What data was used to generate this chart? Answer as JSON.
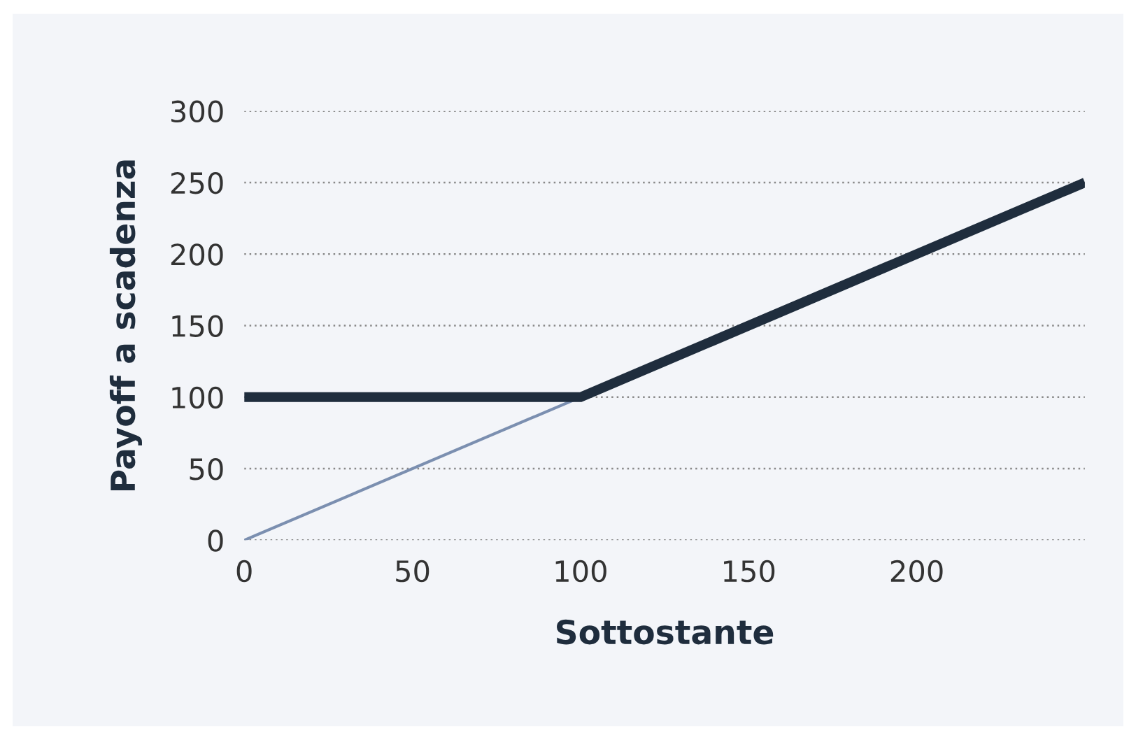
{
  "chart_data": {
    "type": "line",
    "xlabel": "Sottostante",
    "ylabel": "Payoff a scadenza",
    "xlim": [
      0,
      250
    ],
    "xticks": [
      0,
      50,
      100,
      150,
      200
    ],
    "ylim": [
      0,
      300
    ],
    "yticks": [
      0,
      50,
      100,
      150,
      200,
      250,
      300
    ],
    "grid": "y",
    "series": [
      {
        "color": "#7b8fb0",
        "x": [
          0,
          100
        ],
        "values": [
          0,
          100
        ]
      },
      {
        "color": "#1f2d3d",
        "x": [
          0,
          100,
          250
        ],
        "values": [
          100,
          100,
          250
        ]
      }
    ]
  }
}
